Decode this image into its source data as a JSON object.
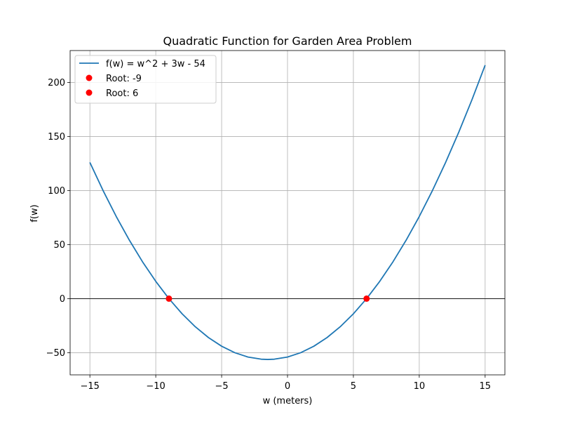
{
  "chart_data": {
    "type": "line",
    "title": "Quadratic Function for Garden Area Problem",
    "xlabel": "w (meters)",
    "ylabel": "f(w)",
    "xlim": [
      -16.5,
      16.5
    ],
    "ylim": [
      -70.5,
      229.5
    ],
    "x_ticks": [
      -15,
      -10,
      -5,
      0,
      5,
      10,
      15
    ],
    "x_tick_labels": [
      "−15",
      "−10",
      "−5",
      "0",
      "5",
      "10",
      "15"
    ],
    "y_ticks": [
      -50,
      0,
      50,
      100,
      150,
      200
    ],
    "y_tick_labels": [
      "−50",
      "0",
      "50",
      "100",
      "150",
      "200"
    ],
    "grid": true,
    "zero_line": true,
    "legend_placement": "top-left",
    "series": [
      {
        "name": "f(w) = w^2 + 3w - 54",
        "kind": "line",
        "color": "#1f77b4",
        "x": [
          -15,
          -14,
          -13,
          -12,
          -11,
          -10,
          -9,
          -8,
          -7,
          -6,
          -5,
          -4,
          -3,
          -2,
          -1.5,
          -1,
          0,
          1,
          2,
          3,
          4,
          5,
          6,
          7,
          8,
          9,
          10,
          11,
          12,
          13,
          14,
          15
        ],
        "y": [
          126,
          100,
          76,
          54,
          34,
          16,
          0,
          -14,
          -26,
          -36,
          -44,
          -50,
          -54,
          -56,
          -56.25,
          -56,
          -54,
          -50,
          -44,
          -36,
          -26,
          -14,
          0,
          16,
          34,
          54,
          76,
          100,
          126,
          154,
          184,
          216
        ]
      },
      {
        "name": "Root: -9",
        "kind": "point",
        "color": "#ff0000",
        "x": [
          -9
        ],
        "y": [
          0
        ]
      },
      {
        "name": "Root: 6",
        "kind": "point",
        "color": "#ff0000",
        "x": [
          6
        ],
        "y": [
          0
        ]
      }
    ]
  }
}
